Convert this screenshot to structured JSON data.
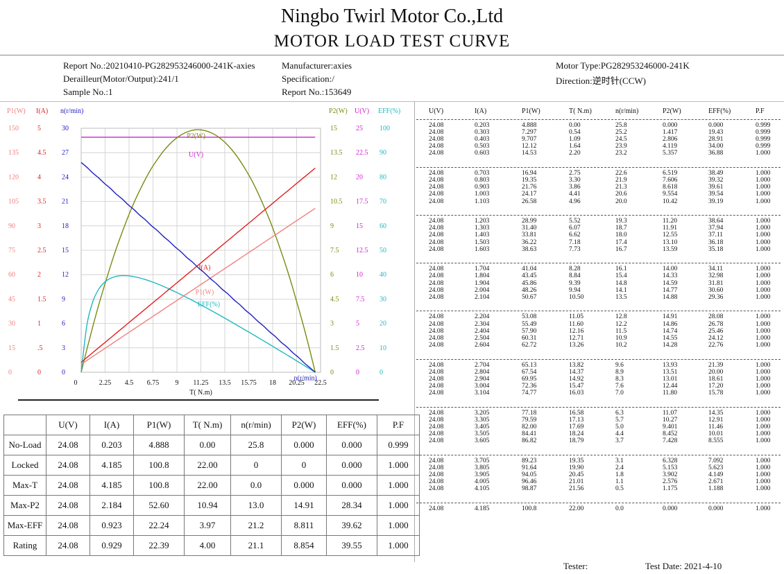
{
  "title": "Ningbo Twirl Motor Co.,Ltd",
  "subtitle": "MOTOR  LOAD  TEST  CURVE",
  "header": {
    "report_no_1": "Report No.:20210410-PG282953246000-241K-axies",
    "derailleur": "Derailleur(Motor/Output):241/1",
    "sample_no": "Sample No.:1",
    "manufacturer": "Manufacturer:axies",
    "specification": "Specification:/",
    "report_no_2": "Report No.:153649",
    "motor_type": "Motor Type:PG282953246000-241K",
    "direction": "Direction:逆时针(CCW)"
  },
  "colors": {
    "p1": "#f08080",
    "i": "#e02020",
    "n": "#2020c0",
    "p2": "#7a8a10",
    "u": "#d020d0",
    "eff": "#20b8c0"
  },
  "chart_data": {
    "type": "line",
    "xlabel": "T( N.m)",
    "xlim": [
      0,
      22.5
    ],
    "x_ticks": [
      "0",
      "2.25",
      "4.5",
      "6.75",
      "9",
      "11.25",
      "13.5",
      "15.75",
      "18",
      "20.25",
      "22.5"
    ],
    "left_axes": [
      {
        "name": "P1(W)",
        "ticks": [
          "150",
          "135",
          "120",
          "105",
          "90",
          "75",
          "60",
          "45",
          "30",
          "15",
          "0"
        ],
        "ylim": [
          0,
          150
        ]
      },
      {
        "name": "I(A)",
        "ticks": [
          "5",
          "4.5",
          "4",
          "3.5",
          "3",
          "2.5",
          "2",
          "1.5",
          "1",
          ".5",
          "0"
        ],
        "ylim": [
          0,
          5
        ]
      },
      {
        "name": "n(r/min)",
        "ticks": [
          "30",
          "27",
          "24",
          "21",
          "18",
          "15",
          "12",
          "9",
          "6",
          "3",
          "0"
        ],
        "ylim": [
          0,
          30
        ]
      }
    ],
    "right_axes": [
      {
        "name": "P2(W)",
        "ticks": [
          "15",
          "13.5",
          "12",
          "10.5",
          "9",
          "7.5",
          "6",
          "4.5",
          "3",
          "1.5",
          "0"
        ],
        "ylim": [
          0,
          15
        ]
      },
      {
        "name": "U(V)",
        "ticks": [
          "25",
          "22.5",
          "20",
          "17.5",
          "15",
          "12.5",
          "10",
          "7.5",
          "5",
          "2.5",
          "0"
        ],
        "ylim": [
          0,
          25
        ]
      },
      {
        "name": "EFF(%)",
        "ticks": [
          "100",
          "90",
          "80",
          "70",
          "60",
          "50",
          "40",
          "30",
          "20",
          "10",
          "0"
        ],
        "ylim": [
          0,
          100
        ]
      }
    ],
    "curve_labels": {
      "p2": "P2(W)",
      "u": "U(V)",
      "i": "I(A)",
      "p1": "P1(W)",
      "eff": "EFF(%)",
      "n": "n(r/min)"
    },
    "series_keys": [
      "u",
      "i",
      "p1",
      "t",
      "n",
      "p2",
      "eff",
      "pf"
    ]
  },
  "data_table": {
    "headers": [
      "U(V)",
      "I(A)",
      "P1(W)",
      "T( N.m)",
      "n(r/min)",
      "P2(W)",
      "EFF(%)",
      "P.F"
    ],
    "groups": [
      [
        [
          "24.08",
          "0.203",
          "4.888",
          "0.00",
          "25.8",
          "0.000",
          "0.000",
          "0.999"
        ],
        [
          "24.08",
          "0.303",
          "7.297",
          "0.54",
          "25.2",
          "1.417",
          "19.43",
          "0.999"
        ],
        [
          "24.08",
          "0.403",
          "9.707",
          "1.09",
          "24.5",
          "2.806",
          "28.91",
          "0.999"
        ],
        [
          "24.08",
          "0.503",
          "12.12",
          "1.64",
          "23.9",
          "4.119",
          "34.00",
          "0.999"
        ],
        [
          "24.08",
          "0.603",
          "14.53",
          "2.20",
          "23.2",
          "5.357",
          "36.88",
          "1.000"
        ]
      ],
      [
        [
          "24.08",
          "0.703",
          "16.94",
          "2.75",
          "22.6",
          "6.519",
          "38.49",
          "1.000"
        ],
        [
          "24.08",
          "0.803",
          "19.35",
          "3.30",
          "21.9",
          "7.606",
          "39.32",
          "1.000"
        ],
        [
          "24.08",
          "0.903",
          "21.76",
          "3.86",
          "21.3",
          "8.618",
          "39.61",
          "1.000"
        ],
        [
          "24.08",
          "1.003",
          "24.17",
          "4.41",
          "20.6",
          "9.554",
          "39.54",
          "1.000"
        ],
        [
          "24.08",
          "1.103",
          "26.58",
          "4.96",
          "20.0",
          "10.42",
          "39.19",
          "1.000"
        ]
      ],
      [
        [
          "24.08",
          "1.203",
          "28.99",
          "5.52",
          "19.3",
          "11.20",
          "38.64",
          "1.000"
        ],
        [
          "24.08",
          "1.303",
          "31.40",
          "6.07",
          "18.7",
          "11.91",
          "37.94",
          "1.000"
        ],
        [
          "24.08",
          "1.403",
          "33.81",
          "6.62",
          "18.0",
          "12.55",
          "37.11",
          "1.000"
        ],
        [
          "24.08",
          "1.503",
          "36.22",
          "7.18",
          "17.4",
          "13.10",
          "36.18",
          "1.000"
        ],
        [
          "24.08",
          "1.603",
          "38.63",
          "7.73",
          "16.7",
          "13.59",
          "35.18",
          "1.000"
        ]
      ],
      [
        [
          "24.08",
          "1.704",
          "41.04",
          "8.28",
          "16.1",
          "14.00",
          "34.11",
          "1.000"
        ],
        [
          "24.08",
          "1.804",
          "43.45",
          "8.84",
          "15.4",
          "14.33",
          "32.98",
          "1.000"
        ],
        [
          "24.08",
          "1.904",
          "45.86",
          "9.39",
          "14.8",
          "14.59",
          "31.81",
          "1.000"
        ],
        [
          "24.08",
          "2.004",
          "48.26",
          "9.94",
          "14.1",
          "14.77",
          "30.60",
          "1.000"
        ],
        [
          "24.08",
          "2.104",
          "50.67",
          "10.50",
          "13.5",
          "14.88",
          "29.36",
          "1.000"
        ]
      ],
      [
        [
          "24.08",
          "2.204",
          "53.08",
          "11.05",
          "12.8",
          "14.91",
          "28.08",
          "1.000"
        ],
        [
          "24.08",
          "2.304",
          "55.49",
          "11.60",
          "12.2",
          "14.86",
          "26.78",
          "1.000"
        ],
        [
          "24.08",
          "2.404",
          "57.90",
          "12.16",
          "11.5",
          "14.74",
          "25.46",
          "1.000"
        ],
        [
          "24.08",
          "2.504",
          "60.31",
          "12.71",
          "10.9",
          "14.55",
          "24.12",
          "1.000"
        ],
        [
          "24.08",
          "2.604",
          "62.72",
          "13.26",
          "10.2",
          "14.28",
          "22.76",
          "1.000"
        ]
      ],
      [
        [
          "24.08",
          "2.704",
          "65.13",
          "13.82",
          "9.6",
          "13.93",
          "21.39",
          "1.000"
        ],
        [
          "24.08",
          "2.804",
          "67.54",
          "14.37",
          "8.9",
          "13.51",
          "20.00",
          "1.000"
        ],
        [
          "24.08",
          "2.904",
          "69.95",
          "14.92",
          "8.3",
          "13.01",
          "18.61",
          "1.000"
        ],
        [
          "24.08",
          "3.004",
          "72.36",
          "15.47",
          "7.6",
          "12.44",
          "17.20",
          "1.000"
        ],
        [
          "24.08",
          "3.104",
          "74.77",
          "16.03",
          "7.0",
          "11.80",
          "15.78",
          "1.000"
        ]
      ],
      [
        [
          "24.08",
          "3.205",
          "77.18",
          "16.58",
          "6.3",
          "11.07",
          "14.35",
          "1.000"
        ],
        [
          "24.08",
          "3.305",
          "79.59",
          "17.13",
          "5.7",
          "10.27",
          "12.91",
          "1.000"
        ],
        [
          "24.08",
          "3.405",
          "82.00",
          "17.69",
          "5.0",
          "9.401",
          "11.46",
          "1.000"
        ],
        [
          "24.08",
          "3.505",
          "84.41",
          "18.24",
          "4.4",
          "8.452",
          "10.01",
          "1.000"
        ],
        [
          "24.08",
          "3.605",
          "86.82",
          "18.79",
          "3.7",
          "7.428",
          "8.555",
          "1.000"
        ]
      ],
      [
        [
          "24.08",
          "3.705",
          "89.23",
          "19.35",
          "3.1",
          "6.328",
          "7.092",
          "1.000"
        ],
        [
          "24.08",
          "3.805",
          "91.64",
          "19.90",
          "2.4",
          "5.153",
          "5.623",
          "1.000"
        ],
        [
          "24.08",
          "3.905",
          "94.05",
          "20.45",
          "1.8",
          "3.902",
          "4.149",
          "1.000"
        ],
        [
          "24.08",
          "4.005",
          "96.46",
          "21.01",
          "1.1",
          "2.576",
          "2.671",
          "1.000"
        ],
        [
          "24.08",
          "4.105",
          "98.87",
          "21.56",
          "0.5",
          "1.175",
          "1.188",
          "1.000"
        ]
      ],
      [
        [
          "24.08",
          "4.185",
          "100.8",
          "22.00",
          "0.0",
          "0.000",
          "0.000",
          "1.000"
        ]
      ]
    ]
  },
  "summary_table": {
    "headers": [
      "",
      "U(V)",
      "I(A)",
      "P1(W)",
      "T( N.m)",
      "n(r/min)",
      "P2(W)",
      "EFF(%)",
      "P.F"
    ],
    "rows": [
      [
        "No-Load",
        "24.08",
        "0.203",
        "4.888",
        "0.00",
        "25.8",
        "0.000",
        "0.000",
        "0.999"
      ],
      [
        "Locked",
        "24.08",
        "4.185",
        "100.8",
        "22.00",
        "0",
        "0",
        "0.000",
        "1.000"
      ],
      [
        "Max-T",
        "24.08",
        "4.185",
        "100.8",
        "22.00",
        "0.0",
        "0.000",
        "0.000",
        "1.000"
      ],
      [
        "Max-P2",
        "24.08",
        "2.184",
        "52.60",
        "10.94",
        "13.0",
        "14.91",
        "28.34",
        "1.000"
      ],
      [
        "Max-EFF",
        "24.08",
        "0.923",
        "22.24",
        "3.97",
        "21.2",
        "8.811",
        "39.62",
        "1.000"
      ],
      [
        "Rating",
        "24.08",
        "0.929",
        "22.39",
        "4.00",
        "21.1",
        "8.854",
        "39.55",
        "1.000"
      ]
    ]
  },
  "footer": {
    "tester": "Tester:",
    "test_date": "Test Date: 2021-4-10"
  }
}
